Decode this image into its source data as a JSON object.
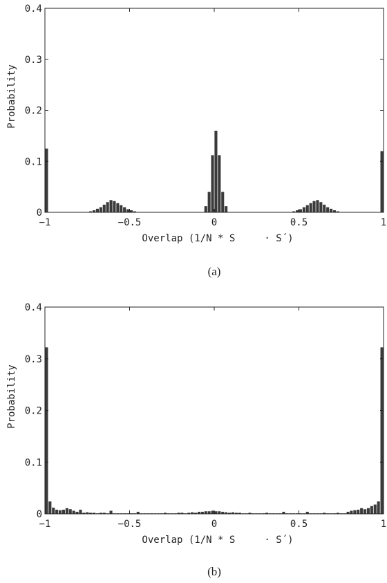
{
  "chart_data": [
    {
      "type": "bar",
      "caption": "(a)",
      "xlabel": "Overlap (1/N * S     · S´)",
      "ylabel": "Probability",
      "xlim": [
        -1,
        1
      ],
      "ylim": [
        0,
        0.4
      ],
      "xticks": [
        -1,
        -0.5,
        0,
        0.5,
        1
      ],
      "xtick_labels": [
        "−1",
        "−0.5",
        "0",
        "0.5",
        "1"
      ],
      "yticks": [
        0,
        0.1,
        0.2,
        0.3,
        0.4
      ],
      "ytick_labels": [
        "0",
        "0.1",
        "0.2",
        "0.3",
        "0.4"
      ],
      "bar_color": "#3a3a3a",
      "bin_width": 0.02,
      "x": [
        -0.99,
        -0.73,
        -0.71,
        -0.69,
        -0.67,
        -0.65,
        -0.63,
        -0.61,
        -0.59,
        -0.57,
        -0.55,
        -0.53,
        -0.51,
        -0.49,
        -0.47,
        -0.05,
        -0.03,
        -0.01,
        0.01,
        0.03,
        0.05,
        0.07,
        0.47,
        0.49,
        0.51,
        0.53,
        0.55,
        0.57,
        0.59,
        0.61,
        0.63,
        0.65,
        0.67,
        0.69,
        0.71,
        0.73,
        0.99
      ],
      "values": [
        0.125,
        0.002,
        0.004,
        0.007,
        0.01,
        0.015,
        0.02,
        0.024,
        0.022,
        0.018,
        0.014,
        0.01,
        0.006,
        0.004,
        0.002,
        0.012,
        0.04,
        0.112,
        0.16,
        0.112,
        0.04,
        0.012,
        0.002,
        0.004,
        0.006,
        0.01,
        0.014,
        0.018,
        0.022,
        0.024,
        0.02,
        0.015,
        0.01,
        0.007,
        0.004,
        0.002,
        0.12
      ]
    },
    {
      "type": "bar",
      "caption": "(b)",
      "xlabel": "Overlap (1/N * S     · S´)",
      "ylabel": "Probability",
      "xlim": [
        -1,
        1
      ],
      "ylim": [
        0,
        0.4
      ],
      "xticks": [
        -1,
        -0.5,
        0,
        0.5,
        1
      ],
      "xtick_labels": [
        "−1",
        "−0.5",
        "0",
        "0.5",
        "1"
      ],
      "yticks": [
        0,
        0.1,
        0.2,
        0.3,
        0.4
      ],
      "ytick_labels": [
        "0",
        "0.1",
        "0.2",
        "0.3",
        "0.4"
      ],
      "bar_color": "#3a3a3a",
      "bin_width": 0.02,
      "x": [
        -0.99,
        -0.97,
        -0.95,
        -0.93,
        -0.91,
        -0.89,
        -0.87,
        -0.85,
        -0.83,
        -0.81,
        -0.79,
        -0.77,
        -0.75,
        -0.73,
        -0.71,
        -0.69,
        -0.67,
        -0.65,
        -0.63,
        -0.61,
        -0.59,
        -0.57,
        -0.55,
        -0.53,
        -0.51,
        -0.49,
        -0.47,
        -0.45,
        -0.43,
        -0.41,
        -0.39,
        -0.37,
        -0.35,
        -0.33,
        -0.31,
        -0.29,
        -0.27,
        -0.25,
        -0.23,
        -0.21,
        -0.19,
        -0.17,
        -0.15,
        -0.13,
        -0.11,
        -0.09,
        -0.07,
        -0.05,
        -0.03,
        -0.01,
        0.01,
        0.03,
        0.05,
        0.07,
        0.09,
        0.11,
        0.13,
        0.15,
        0.17,
        0.19,
        0.21,
        0.23,
        0.25,
        0.27,
        0.29,
        0.31,
        0.33,
        0.35,
        0.37,
        0.39,
        0.41,
        0.43,
        0.45,
        0.47,
        0.49,
        0.51,
        0.53,
        0.55,
        0.57,
        0.59,
        0.61,
        0.63,
        0.65,
        0.67,
        0.69,
        0.71,
        0.73,
        0.75,
        0.77,
        0.79,
        0.81,
        0.83,
        0.85,
        0.87,
        0.89,
        0.91,
        0.93,
        0.95,
        0.97,
        0.99
      ],
      "values": [
        0.322,
        0.024,
        0.012,
        0.008,
        0.007,
        0.008,
        0.011,
        0.009,
        0.006,
        0.004,
        0.008,
        0.002,
        0.003,
        0.002,
        0.002,
        0.001,
        0.002,
        0.002,
        0.001,
        0.006,
        0.001,
        0.001,
        0.001,
        0.001,
        0.001,
        0.001,
        0.001,
        0.004,
        0.001,
        0.001,
        0.001,
        0.001,
        0.001,
        0.001,
        0.001,
        0.002,
        0.001,
        0.001,
        0.001,
        0.002,
        0.002,
        0.001,
        0.002,
        0.003,
        0.002,
        0.004,
        0.004,
        0.005,
        0.005,
        0.006,
        0.005,
        0.005,
        0.004,
        0.003,
        0.002,
        0.003,
        0.002,
        0.002,
        0.001,
        0.001,
        0.002,
        0.001,
        0.001,
        0.001,
        0.001,
        0.002,
        0.001,
        0.001,
        0.001,
        0.001,
        0.004,
        0.001,
        0.001,
        0.001,
        0.001,
        0.001,
        0.001,
        0.004,
        0.001,
        0.001,
        0.001,
        0.001,
        0.002,
        0.001,
        0.001,
        0.001,
        0.002,
        0.001,
        0.001,
        0.004,
        0.006,
        0.007,
        0.008,
        0.011,
        0.009,
        0.011,
        0.015,
        0.018,
        0.024,
        0.322
      ]
    }
  ]
}
